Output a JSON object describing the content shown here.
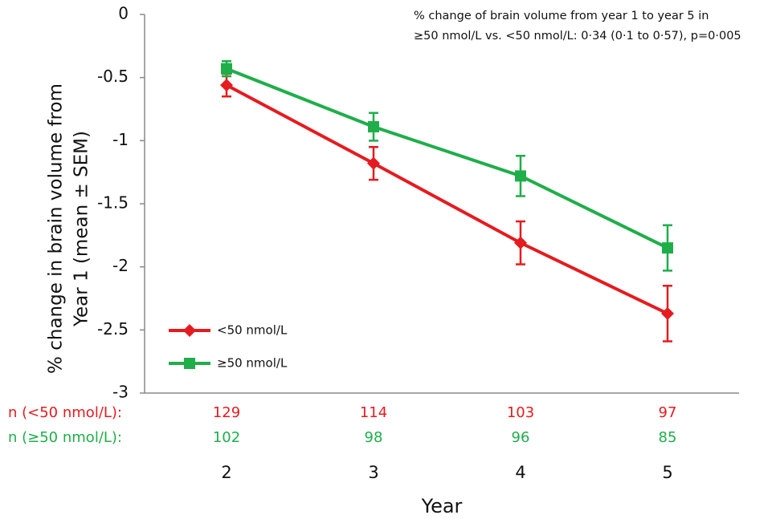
{
  "chart_data": {
    "type": "line",
    "annotation": [
      "% change of brain volume from year 1 to year 5 in",
      "≥50 nmol/L vs. <50 nmol/L: 0·34 (0·1  to 0·57), p=0·005"
    ],
    "y_label": [
      "% change in brain volume from",
      "Year 1 (mean ± SEM)"
    ],
    "x_label": "Year",
    "categories": [
      "2",
      "3",
      "4",
      "5"
    ],
    "series": [
      {
        "name": "<50 nmol/L",
        "color": "#e51b1f",
        "marker": "diamond",
        "values": [
          -0.56,
          -1.18,
          -1.81,
          -2.37
        ],
        "errors": [
          0.09,
          0.13,
          0.17,
          0.22
        ]
      },
      {
        "name": "≥50 nmol/L",
        "color": "#1fae4a",
        "marker": "square",
        "values": [
          -0.43,
          -0.89,
          -1.28,
          -1.85
        ],
        "errors": [
          0.06,
          0.11,
          0.16,
          0.18
        ]
      }
    ],
    "n_table": [
      {
        "label": "n (<50 nmol/L):",
        "values": [
          129,
          114,
          103,
          97
        ]
      },
      {
        "label": "n (≥50 nmol/L):",
        "values": [
          102,
          98,
          96,
          85
        ]
      }
    ],
    "ylim": [
      -3,
      0
    ],
    "yticks": [
      0,
      -0.5,
      -1,
      -1.5,
      -2,
      -2.5,
      -3
    ],
    "grid": false,
    "legend": "lower-left"
  }
}
